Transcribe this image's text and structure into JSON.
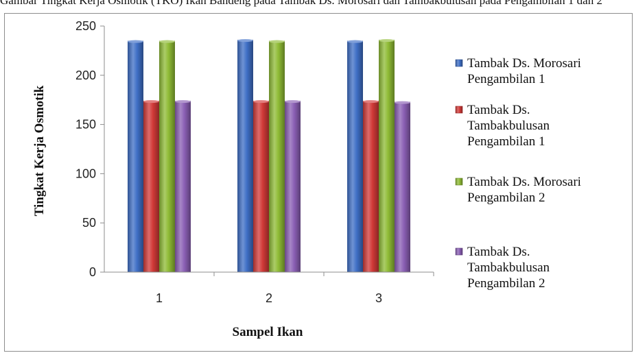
{
  "caption_fragment": "Gambar Tingkat Kerja Osmotik (TKO) Ikan Bandeng pada Tambak Ds. Morosari dan Tambakbulusan pada Pengambilan 1 dan 2",
  "chart_data": {
    "type": "bar",
    "title": "",
    "xlabel": "Sampel Ikan",
    "ylabel": "Tingkat Kerja Osmotik",
    "categories": [
      "1",
      "2",
      "3"
    ],
    "ylim": [
      0,
      250
    ],
    "yticks": [
      0,
      50,
      100,
      150,
      200,
      250
    ],
    "grid": false,
    "legend_position": "right",
    "series": [
      {
        "name": "Tambak Ds. Morosari Pengambilan 1",
        "legend_lines": [
          "Tambak Ds. Morosari",
          "Pengambilan 1"
        ],
        "color": "#3f6fc6",
        "values": [
          235,
          236,
          235
        ]
      },
      {
        "name": "Tambak Ds. Tambakbulusan Pengambilan 1",
        "legend_lines": [
          "Tambak Ds.",
          "Tambakbulusan",
          "Pengambilan 1"
        ],
        "color": "#d23a38",
        "values": [
          174,
          174,
          174
        ]
      },
      {
        "name": "Tambak Ds. Morosari Pengambilan 2",
        "legend_lines": [
          "Tambak Ds. Morosari",
          "Pengambilan 2"
        ],
        "color": "#8fbb35",
        "values": [
          235,
          235,
          236
        ]
      },
      {
        "name": "Tambak Ds. Tambakbulusan Pengambilan 2",
        "legend_lines": [
          "Tambak Ds.",
          "Tambakbulusan",
          "Pengambilan 2"
        ],
        "color": "#8a5fb4",
        "values": [
          174,
          174,
          173
        ]
      }
    ]
  }
}
